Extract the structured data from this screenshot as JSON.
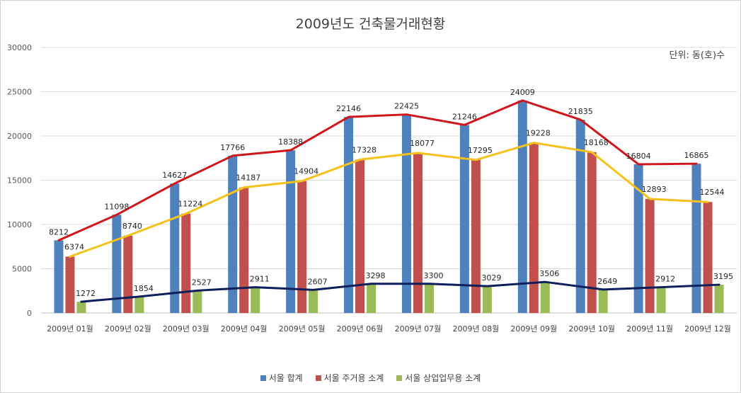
{
  "chart_data": {
    "type": "bar",
    "title": "2009년도 건축물거래현황",
    "unit_label": "단위: 동(호)수",
    "categories": [
      "2009년 01월",
      "2009년 02월",
      "2009년 03월",
      "2009년 04월",
      "2009년 05월",
      "2009년 06월",
      "2009년 07월",
      "2009년 08월",
      "2009년 09월",
      "2009년 10월",
      "2009년 11월",
      "2009년 12월"
    ],
    "series": [
      {
        "name": "서울 합계",
        "color": "#4f81bd",
        "line_color": "#d0161b",
        "values": [
          8212,
          11098,
          14627,
          17766,
          18388,
          22146,
          22425,
          21246,
          24009,
          21835,
          16804,
          16865
        ]
      },
      {
        "name": "서울 주거용 소계",
        "color": "#c0504d",
        "line_color": "#f5c21b",
        "values": [
          6374,
          8740,
          11224,
          14187,
          14904,
          17328,
          18077,
          17295,
          19228,
          18168,
          12893,
          12544
        ]
      },
      {
        "name": "서울 상업업무용 소계",
        "color": "#9bbb59",
        "line_color": "#0f1f5c",
        "values": [
          1272,
          1854,
          2527,
          2911,
          2607,
          3298,
          3300,
          3029,
          3506,
          2649,
          2912,
          3195
        ]
      }
    ],
    "ylim": [
      0,
      30000
    ],
    "yticks": [
      0,
      5000,
      10000,
      15000,
      20000,
      25000,
      30000
    ],
    "grid": true,
    "legend_position": "bottom"
  }
}
